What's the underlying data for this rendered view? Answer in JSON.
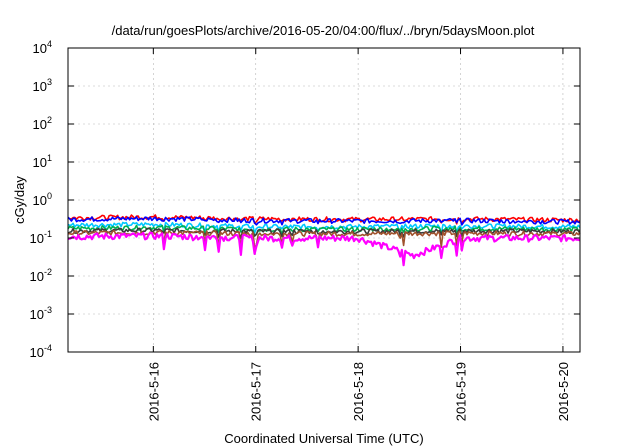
{
  "chart_data": {
    "type": "line",
    "title": "/data/run/goesPlots/archive/2016-05-20/04:00/flux/../bryn/5daysMoon.plot",
    "xlabel": "Coordinated Universal Time (UTC)",
    "ylabel": "cGy/day",
    "yscale": "log",
    "ylim": [
      0.0001,
      10000
    ],
    "yticks": [
      {
        "base": "10",
        "exp": "-4",
        "value": 0.0001
      },
      {
        "base": "10",
        "exp": "-3",
        "value": 0.001
      },
      {
        "base": "10",
        "exp": "-2",
        "value": 0.01
      },
      {
        "base": "10",
        "exp": "-1",
        "value": 0.1
      },
      {
        "base": "10",
        "exp": "0",
        "value": 1
      },
      {
        "base": "10",
        "exp": "1",
        "value": 10
      },
      {
        "base": "10",
        "exp": "2",
        "value": 100
      },
      {
        "base": "10",
        "exp": "3",
        "value": 1000
      },
      {
        "base": "10",
        "exp": "4",
        "value": 10000
      }
    ],
    "xlim": [
      "2016-05-15 04:00",
      "2016-05-20 04:00"
    ],
    "xticks": [
      "2016-5-16",
      "2016-5-17",
      "2016-5-18",
      "2016-5-19",
      "2016-5-20"
    ],
    "grid": true,
    "legend": "none",
    "series": [
      {
        "color": "#ff0000",
        "baseline": 0.33,
        "x": [
          "2016-05-15 04:00",
          "2016-05-16 00:00",
          "2016-05-17 00:00",
          "2016-05-18 00:00",
          "2016-05-19 00:00",
          "2016-05-20 00:00",
          "2016-05-20 04:00"
        ],
        "values": [
          0.34,
          0.36,
          0.32,
          0.31,
          0.32,
          0.3,
          0.3
        ]
      },
      {
        "color": "#0000ff",
        "baseline": 0.3,
        "x": [
          "2016-05-15 04:00",
          "2016-05-16 00:00",
          "2016-05-17 00:00",
          "2016-05-18 00:00",
          "2016-05-19 00:00",
          "2016-05-20 00:00",
          "2016-05-20 04:00"
        ],
        "values": [
          0.31,
          0.33,
          0.29,
          0.28,
          0.29,
          0.27,
          0.27
        ]
      },
      {
        "color": "#00c8ff",
        "baseline": 0.21,
        "x": [
          "2016-05-15 04:00",
          "2016-05-16 00:00",
          "2016-05-17 00:00",
          "2016-05-18 00:00",
          "2016-05-19 00:00",
          "2016-05-20 00:00",
          "2016-05-20 04:00"
        ],
        "values": [
          0.22,
          0.23,
          0.2,
          0.2,
          0.21,
          0.2,
          0.2
        ]
      },
      {
        "color": "#00b050",
        "baseline": 0.18,
        "x": [
          "2016-05-15 04:00",
          "2016-05-16 00:00",
          "2016-05-17 00:00",
          "2016-05-18 00:00",
          "2016-05-19 00:00",
          "2016-05-20 00:00",
          "2016-05-20 04:00"
        ],
        "values": [
          0.18,
          0.19,
          0.17,
          0.17,
          0.18,
          0.17,
          0.17
        ]
      },
      {
        "color": "#3a3a3a",
        "baseline": 0.155,
        "x": [
          "2016-05-15 04:00",
          "2016-05-16 00:00",
          "2016-05-17 00:00",
          "2016-05-18 00:00",
          "2016-05-19 00:00",
          "2016-05-20 00:00",
          "2016-05-20 04:00"
        ],
        "values": [
          0.155,
          0.16,
          0.15,
          0.15,
          0.155,
          0.15,
          0.15
        ]
      },
      {
        "color": "#a0522d",
        "baseline": 0.135,
        "x": [
          "2016-05-15 04:00",
          "2016-05-16 00:00",
          "2016-05-17 00:00",
          "2016-05-18 00:00",
          "2016-05-19 00:00",
          "2016-05-20 00:00",
          "2016-05-20 04:00"
        ],
        "values": [
          0.135,
          0.14,
          0.13,
          0.13,
          0.135,
          0.13,
          0.13
        ]
      },
      {
        "color": "#ff00ff",
        "baseline": 0.11,
        "x": [
          "2016-05-15 04:00",
          "2016-05-16 00:00",
          "2016-05-17 00:00",
          "2016-05-18 00:00",
          "2016-05-18 13:00",
          "2016-05-19 00:00",
          "2016-05-20 00:00",
          "2016-05-20 04:00"
        ],
        "values": [
          0.11,
          0.115,
          0.1,
          0.1,
          0.035,
          0.1,
          0.1,
          0.1
        ]
      }
    ]
  }
}
